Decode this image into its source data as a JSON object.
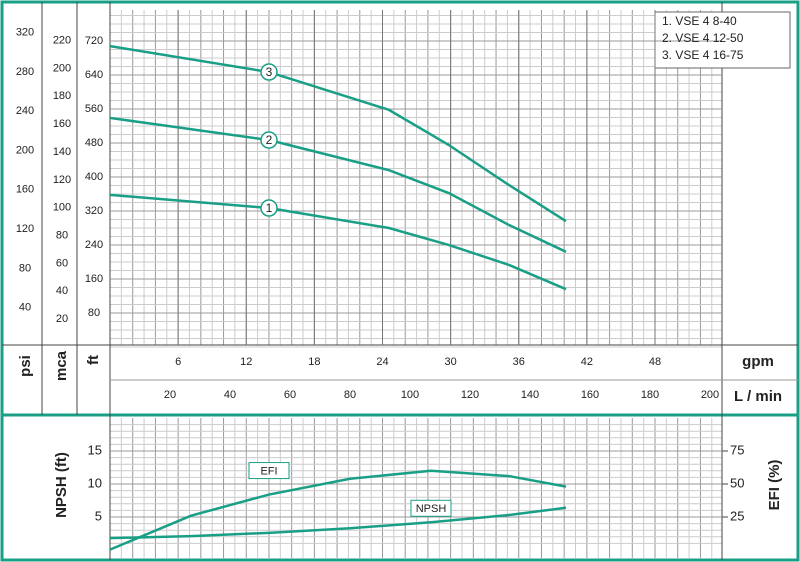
{
  "chart_data": [
    {
      "type": "line",
      "ylabel": "ft",
      "y2label": "mca",
      "y3label": "psi",
      "xlabel": "L / min",
      "x2label": "gpm",
      "x": [
        0,
        53,
        93,
        113,
        133,
        152
      ],
      "series": [
        {
          "name": "1",
          "color": "#1a9f87",
          "values": [
            358,
            327,
            280,
            240,
            193,
            136
          ]
        },
        {
          "name": "2",
          "color": "#1a9f87",
          "values": [
            539,
            487,
            416,
            362,
            287,
            224
          ]
        },
        {
          "name": "3",
          "color": "#1a9f87",
          "values": [
            708,
            647,
            558,
            475,
            381,
            296
          ]
        }
      ],
      "legend": [
        "1. VSE 4 8-40",
        "2. VSE 4 12-50",
        "3. VSE 4 16-75"
      ],
      "xlim": [
        0,
        204
      ],
      "xticks": [
        20,
        40,
        60,
        80,
        100,
        120,
        140,
        160,
        180,
        200
      ],
      "x2lim": [
        0,
        53.9
      ],
      "x2ticks": [
        6,
        12,
        18,
        24,
        30,
        36,
        42,
        48
      ],
      "ylim": [
        0,
        793
      ],
      "yticks": [
        80,
        160,
        240,
        320,
        400,
        480,
        560,
        640,
        720
      ],
      "y2lim": [
        0,
        242
      ],
      "y2ticks": [
        20,
        40,
        60,
        80,
        100,
        120,
        140,
        160,
        180,
        200,
        220
      ],
      "y3lim": [
        0,
        343
      ],
      "y3ticks": [
        40,
        80,
        120,
        160,
        200,
        240,
        280,
        320
      ],
      "grid": true
    },
    {
      "type": "line",
      "ylabel": "NPSH (ft)",
      "y2label": "EFI (%)",
      "x": [
        0,
        27,
        53,
        80,
        107,
        133,
        152
      ],
      "series": [
        {
          "name": "NPSH",
          "color": "#1a9f87",
          "values": [
            1.8,
            2.1,
            2.6,
            3.3,
            4.2,
            5.3,
            6.4
          ]
        },
        {
          "name": "EFI",
          "color": "#1a9f87",
          "axis": "y2",
          "values": [
            0.3,
            26,
            42,
            54,
            60,
            56,
            48
          ]
        }
      ],
      "xlim": [
        0,
        204
      ],
      "ylim": [
        0,
        20
      ],
      "yticks": [
        5,
        10,
        15
      ],
      "y2lim": [
        0,
        100
      ],
      "y2ticks": [
        25,
        50,
        75
      ],
      "grid": true
    }
  ]
}
